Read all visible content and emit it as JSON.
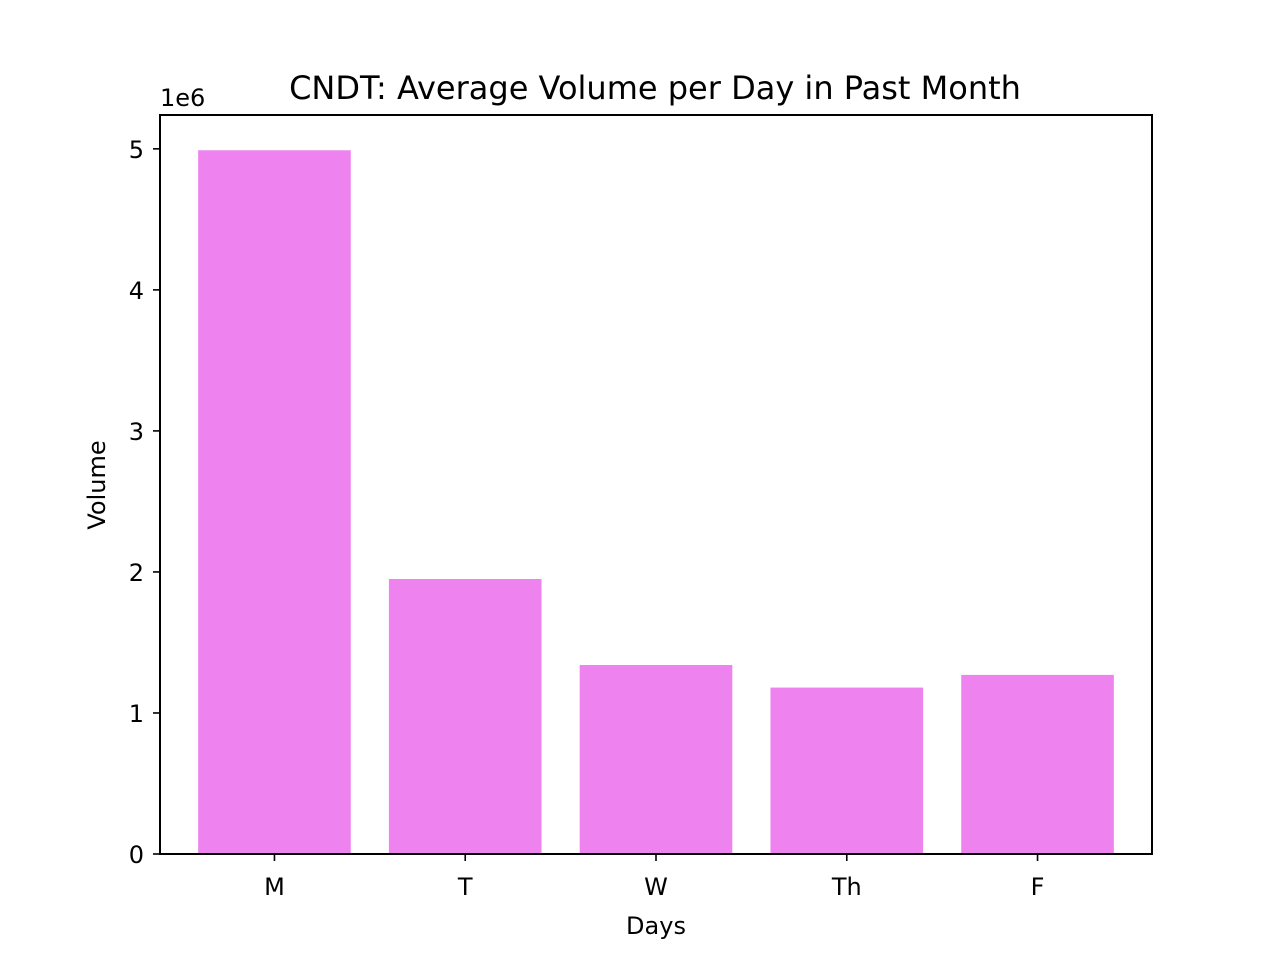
{
  "chart_data": {
    "type": "bar",
    "title": "CNDT: Average Volume per Day in Past Month",
    "xlabel": "Days",
    "ylabel": "Volume",
    "y_multiplier_label": "1e6",
    "categories": [
      "M",
      "T",
      "W",
      "Th",
      "F"
    ],
    "values": [
      4990000,
      1950000,
      1340000,
      1180000,
      1270000
    ],
    "ylim": [
      0,
      5240000
    ],
    "yticks": [
      0,
      1000000,
      2000000,
      3000000,
      4000000,
      5000000
    ],
    "ytick_labels": [
      "0",
      "1",
      "2",
      "3",
      "4",
      "5"
    ],
    "grid": false,
    "legend": "none",
    "bar_color": "#ee82ee"
  }
}
